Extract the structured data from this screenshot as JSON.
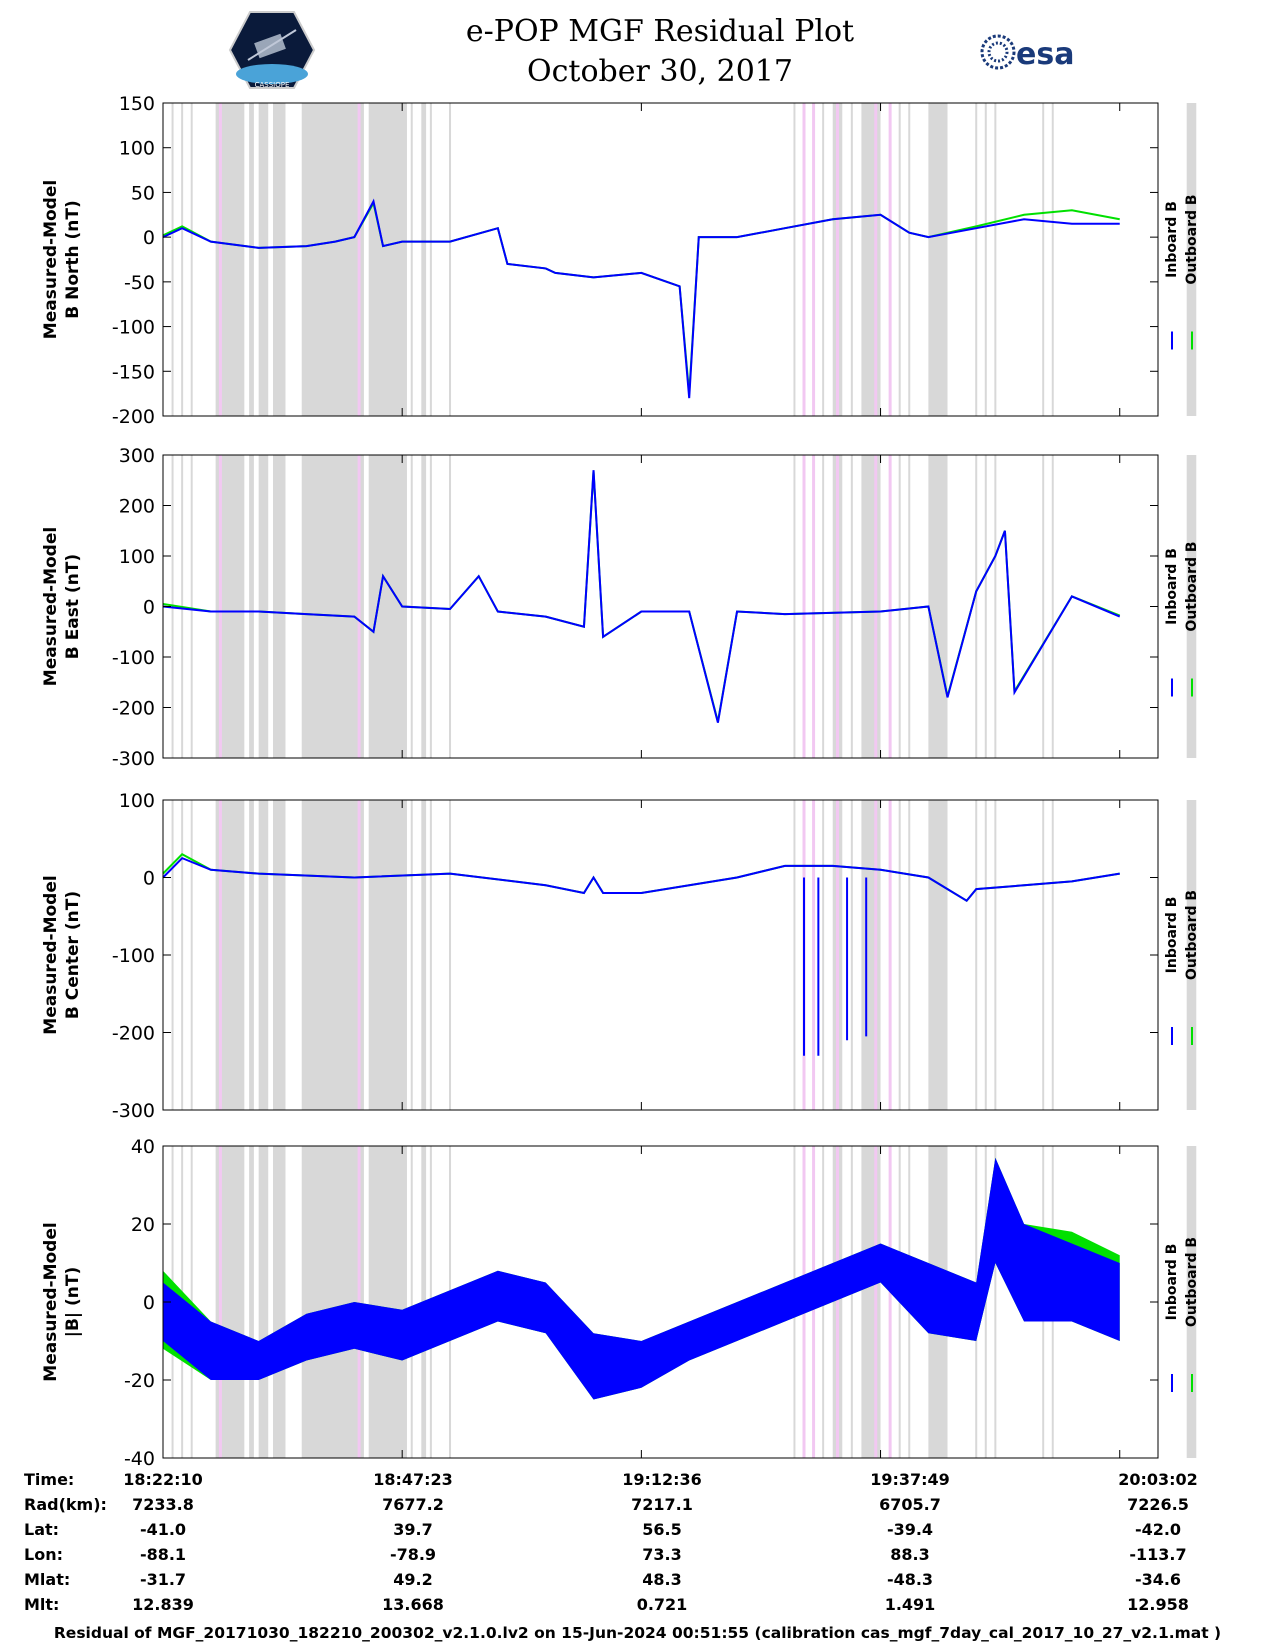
{
  "header": {
    "title_line1": "e-POP MGF Residual Plot",
    "title_line2": "October 30, 2017",
    "logo_left": "CASSIOPE",
    "logo_right": "esa"
  },
  "colors": {
    "inboard": "#0000ff",
    "outboard": "#00e000",
    "shade_gray": "#d8d8d8",
    "shade_pink": "#f2c8f2"
  },
  "chart_data": [
    {
      "type": "line",
      "ylabel": [
        "Measured-Model",
        "B North (nT)"
      ],
      "ylim": [
        -200,
        150
      ],
      "yticks": [
        150,
        100,
        50,
        0,
        -50,
        -100,
        -150,
        -200
      ],
      "legend": [
        "Inboard B",
        "Outboard B"
      ],
      "legend_placement": "right",
      "x_minutes": [
        0,
        2,
        5,
        10,
        15,
        18,
        20,
        22,
        23,
        25,
        30,
        35,
        36,
        40,
        41,
        45,
        50,
        54,
        55,
        56,
        60,
        65,
        70,
        75,
        78,
        80,
        85,
        90,
        95,
        100
      ],
      "series": [
        {
          "name": "Inboard B",
          "values": [
            0,
            10,
            -5,
            -12,
            -10,
            -5,
            0,
            40,
            -10,
            -5,
            -5,
            10,
            -30,
            -35,
            -40,
            -45,
            -40,
            -55,
            -180,
            0,
            0,
            10,
            20,
            25,
            5,
            0,
            10,
            20,
            15,
            15
          ]
        },
        {
          "name": "Outboard B",
          "values": [
            2,
            12,
            -5,
            -12,
            -10,
            -5,
            0,
            38,
            -10,
            -5,
            -5,
            10,
            -30,
            -35,
            -40,
            -45,
            -40,
            -55,
            -175,
            0,
            0,
            10,
            20,
            25,
            5,
            0,
            12,
            25,
            30,
            20
          ]
        }
      ]
    },
    {
      "type": "line",
      "ylabel": [
        "Measured-Model",
        "B East (nT)"
      ],
      "ylim": [
        -300,
        300
      ],
      "yticks": [
        300,
        200,
        100,
        0,
        -100,
        -200,
        -300
      ],
      "legend": [
        "Inboard B",
        "Outboard B"
      ],
      "legend_placement": "right",
      "x_minutes": [
        0,
        5,
        10,
        15,
        20,
        22,
        23,
        25,
        30,
        33,
        35,
        40,
        44,
        45,
        46,
        50,
        55,
        58,
        60,
        65,
        75,
        80,
        82,
        85,
        87,
        88,
        89,
        95,
        100
      ],
      "series": [
        {
          "name": "Inboard B",
          "values": [
            0,
            -10,
            -10,
            -15,
            -20,
            -50,
            60,
            0,
            -5,
            60,
            -10,
            -20,
            -40,
            270,
            -60,
            -10,
            -10,
            -230,
            -10,
            -15,
            -10,
            0,
            -180,
            30,
            100,
            150,
            -170,
            20,
            -20
          ]
        },
        {
          "name": "Outboard B",
          "values": [
            5,
            -10,
            -10,
            -15,
            -20,
            -50,
            60,
            0,
            -5,
            60,
            -10,
            -20,
            -40,
            268,
            -60,
            -10,
            -10,
            -228,
            -10,
            -15,
            -10,
            0,
            -178,
            30,
            100,
            150,
            -168,
            20,
            -18
          ]
        }
      ]
    },
    {
      "type": "line",
      "ylabel": [
        "Measured-Model",
        "B Center (nT)"
      ],
      "ylim": [
        -300,
        100
      ],
      "yticks": [
        100,
        0,
        -100,
        -200,
        -300
      ],
      "legend": [
        "Inboard B",
        "Outboard B"
      ],
      "legend_placement": "right",
      "x_minutes": [
        0,
        2,
        5,
        10,
        20,
        30,
        40,
        44,
        45,
        46,
        50,
        55,
        60,
        65,
        70,
        75,
        80,
        84,
        85,
        90,
        95,
        100
      ],
      "series": [
        {
          "name": "Inboard B",
          "values": [
            0,
            25,
            10,
            5,
            0,
            5,
            -10,
            -20,
            0,
            -20,
            -20,
            -10,
            0,
            15,
            15,
            10,
            0,
            -30,
            -15,
            -10,
            -5,
            5
          ]
        },
        {
          "name": "Outboard B",
          "values": [
            5,
            30,
            10,
            5,
            0,
            5,
            -10,
            -20,
            0,
            -20,
            -20,
            -10,
            0,
            15,
            15,
            10,
            0,
            -30,
            -15,
            -10,
            -5,
            5
          ]
        }
      ],
      "spike_values": [
        -230,
        -230,
        -210,
        -205
      ]
    },
    {
      "type": "area",
      "ylabel": [
        "Measured-Model",
        "|B| (nT)"
      ],
      "ylim": [
        -40,
        40
      ],
      "yticks": [
        40,
        20,
        0,
        -20,
        -40
      ],
      "legend": [
        "Inboard B",
        "Outboard B"
      ],
      "legend_placement": "right",
      "x_minutes": [
        0,
        5,
        10,
        15,
        20,
        25,
        30,
        35,
        40,
        45,
        50,
        55,
        60,
        65,
        70,
        75,
        80,
        85,
        87,
        90,
        95,
        100
      ],
      "series": [
        {
          "name": "Inboard B",
          "upper": [
            5,
            -5,
            -10,
            -3,
            0,
            -2,
            3,
            8,
            5,
            -8,
            -10,
            -5,
            0,
            5,
            10,
            15,
            10,
            5,
            37,
            20,
            15,
            10
          ],
          "lower": [
            -10,
            -20,
            -20,
            -15,
            -12,
            -15,
            -10,
            -5,
            -8,
            -25,
            -22,
            -15,
            -10,
            -5,
            0,
            5,
            -8,
            -10,
            10,
            -5,
            -5,
            -10
          ]
        },
        {
          "name": "Outboard B",
          "upper": [
            8,
            -5,
            -10,
            -3,
            0,
            -2,
            3,
            8,
            5,
            -8,
            -10,
            -5,
            0,
            5,
            10,
            15,
            10,
            5,
            37,
            20,
            18,
            12
          ],
          "lower": [
            -12,
            -20,
            -20,
            -15,
            -12,
            -15,
            -10,
            -5,
            -8,
            -25,
            -22,
            -15,
            -10,
            -5,
            0,
            5,
            -8,
            -10,
            10,
            -5,
            -5,
            -10
          ]
        }
      ]
    }
  ],
  "data_gaps": {
    "gray_bands_minutes": [
      [
        5.5,
        8.5
      ],
      [
        9,
        9.5
      ],
      [
        10,
        11
      ],
      [
        11.5,
        12.8
      ],
      [
        14.5,
        21
      ],
      [
        21.5,
        25.5
      ],
      [
        27,
        27.5
      ],
      [
        70,
        71
      ],
      [
        73,
        75
      ],
      [
        80,
        82
      ],
      [
        107,
        108
      ]
    ],
    "pink_lines_minutes": [
      6,
      20.5,
      67,
      68,
      70.5,
      74.5,
      76
    ],
    "thin_gray_lines_minutes": [
      1,
      2,
      3,
      26,
      28,
      30,
      66,
      69,
      72,
      77,
      78,
      85,
      86,
      87,
      92,
      93
    ]
  },
  "x_axis": {
    "tick_minutes": [
      0,
      25,
      50,
      75,
      100
    ]
  },
  "ephemeris": {
    "rows": [
      {
        "label": "Time:",
        "values": [
          "18:22:10",
          "18:47:23",
          "19:12:36",
          "19:37:49",
          "20:03:02"
        ]
      },
      {
        "label": "Rad(km):",
        "values": [
          "7233.8",
          "7677.2",
          "7217.1",
          "6705.7",
          "7226.5"
        ]
      },
      {
        "label": "Lat:",
        "values": [
          "-41.0",
          "39.7",
          "56.5",
          "-39.4",
          "-42.0"
        ]
      },
      {
        "label": "Lon:",
        "values": [
          "-88.1",
          "-78.9",
          "73.3",
          "88.3",
          "-113.7"
        ]
      },
      {
        "label": "Mlat:",
        "values": [
          "-31.7",
          "49.2",
          "48.3",
          "-48.3",
          "-34.6"
        ]
      },
      {
        "label": "Mlt:",
        "values": [
          "12.839",
          "13.668",
          "0.721",
          "1.491",
          "12.958"
        ]
      }
    ]
  },
  "footer": "Residual of MGF_20171030_182210_200302_v2.1.0.lv2 on 15-Jun-2024 00:51:55 (calibration cas_mgf_7day_cal_2017_10_27_v2.1.mat )"
}
